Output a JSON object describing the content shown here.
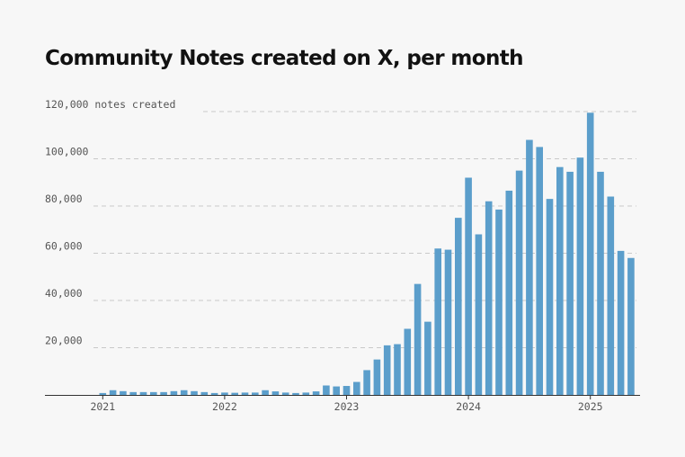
{
  "chart_data": {
    "type": "bar",
    "title": "Community Notes created on X, per month",
    "ylabel": "notes created",
    "ylim": [
      0,
      120000
    ],
    "yticks": [
      20000,
      40000,
      60000,
      80000,
      100000,
      120000
    ],
    "ytick_labels": [
      "20,000",
      "40,000",
      "60,000",
      "80,000",
      "100,000",
      "120,000"
    ],
    "ytop_label": "120,000 notes created",
    "xtick_labels": [
      "2021",
      "2022",
      "2023",
      "2024",
      "2025"
    ],
    "bar_color": "#5b9ecb",
    "grid": "horizontal dashed",
    "categories": [
      "2021-01",
      "2021-02",
      "2021-03",
      "2021-04",
      "2021-05",
      "2021-06",
      "2021-07",
      "2021-08",
      "2021-09",
      "2021-10",
      "2021-11",
      "2021-12",
      "2022-01",
      "2022-02",
      "2022-03",
      "2022-04",
      "2022-05",
      "2022-06",
      "2022-07",
      "2022-08",
      "2022-09",
      "2022-10",
      "2022-11",
      "2022-12",
      "2023-01",
      "2023-02",
      "2023-03",
      "2023-04",
      "2023-05",
      "2023-06",
      "2023-07",
      "2023-08",
      "2023-09",
      "2023-10",
      "2023-11",
      "2023-12",
      "2024-01",
      "2024-02",
      "2024-03",
      "2024-04",
      "2024-05",
      "2024-06",
      "2024-07",
      "2024-08",
      "2024-09",
      "2024-10",
      "2024-11",
      "2024-12",
      "2025-01",
      "2025-02",
      "2025-03",
      "2025-04",
      "2025-05"
    ],
    "values": [
      800,
      2000,
      1600,
      1200,
      1200,
      1200,
      1200,
      1600,
      2000,
      1600,
      1200,
      800,
      1000,
      900,
      1000,
      1000,
      2000,
      1500,
      1000,
      800,
      1000,
      1500,
      4000,
      3600,
      3800,
      5500,
      10500,
      15000,
      21000,
      21500,
      28000,
      47000,
      31000,
      62000,
      61500,
      75000,
      92000,
      68000,
      82000,
      78500,
      86500,
      95000,
      108000,
      105000,
      83000,
      96500,
      94500,
      100500,
      119500,
      94500,
      84000,
      61000,
      58000
    ]
  }
}
